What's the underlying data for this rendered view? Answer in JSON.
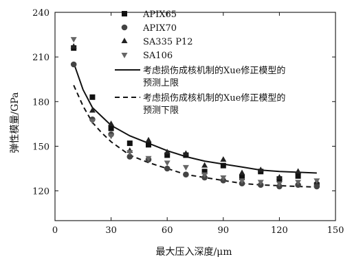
{
  "chart_data": {
    "type": "scatter",
    "xlabel": "最大压入深度/μm",
    "ylabel": "弹性模量/GPa",
    "xlim": [
      0,
      150
    ],
    "ylim": [
      100,
      240
    ],
    "x_ticks": [
      0,
      30,
      60,
      90,
      120,
      150
    ],
    "y_ticks": [
      120,
      150,
      180,
      210,
      240
    ],
    "grid": false,
    "legend_position": "top-right",
    "series": [
      {
        "name": "APIX65",
        "marker": "square",
        "color": "#111111",
        "x": [
          10,
          20,
          30,
          40,
          50,
          60,
          70,
          80,
          90,
          100,
          110,
          120,
          130,
          140
        ],
        "y": [
          216,
          183,
          162,
          152,
          151,
          144,
          144,
          133,
          137,
          129,
          133,
          128,
          130,
          124
        ]
      },
      {
        "name": "APIX70",
        "marker": "circle",
        "color": "#444444",
        "x": [
          10,
          20,
          30,
          40,
          50,
          60,
          70,
          80,
          90,
          100,
          110,
          120,
          130,
          140
        ],
        "y": [
          205,
          168,
          158,
          143,
          141,
          135,
          131,
          129,
          127,
          125,
          124,
          123,
          124,
          123
        ]
      },
      {
        "name": "SA335 P12",
        "marker": "triangle-up",
        "color": "#222222",
        "x": [
          10,
          20,
          30,
          40,
          50,
          60,
          70,
          80,
          90,
          100,
          110,
          120,
          130,
          140
        ],
        "y": [
          217,
          174,
          165,
          147,
          154,
          146,
          145,
          137,
          141,
          132,
          134,
          129,
          133,
          126
        ]
      },
      {
        "name": "SA106",
        "marker": "triangle-down",
        "color": "#666666",
        "x": [
          10,
          20,
          30,
          40,
          50,
          60,
          70,
          80,
          90,
          100,
          110,
          120,
          130,
          140
        ],
        "y": [
          222,
          167,
          157,
          146,
          142,
          139,
          136,
          131,
          129,
          127,
          126,
          125,
          126,
          127
        ]
      }
    ],
    "curves": [
      {
        "name": "考虑损伤成核机制的Xue修正模型的预测上限",
        "name_lines": [
          "考虑损伤成核机制的Xue修正模型的",
          "预测上限"
        ],
        "style": "solid",
        "x": [
          10,
          15,
          20,
          25,
          30,
          40,
          50,
          60,
          70,
          80,
          90,
          100,
          110,
          120,
          130,
          140
        ],
        "y": [
          206,
          188,
          176,
          170,
          164,
          157,
          152,
          147,
          143,
          140,
          138,
          136,
          134,
          133,
          132.5,
          132
        ]
      },
      {
        "name": "考虑损伤成核机制的Xue修正模型的预测下限",
        "name_lines": [
          "考虑损伤成核机制的Xue修正模型的",
          "预测下限"
        ],
        "style": "dashed",
        "x": [
          10,
          15,
          20,
          25,
          30,
          40,
          50,
          60,
          70,
          80,
          90,
          100,
          110,
          120,
          130,
          140
        ],
        "y": [
          191,
          177,
          166,
          159,
          153,
          144,
          139,
          135,
          131,
          129,
          127,
          125,
          124,
          123.5,
          123,
          122.5
        ]
      }
    ]
  }
}
